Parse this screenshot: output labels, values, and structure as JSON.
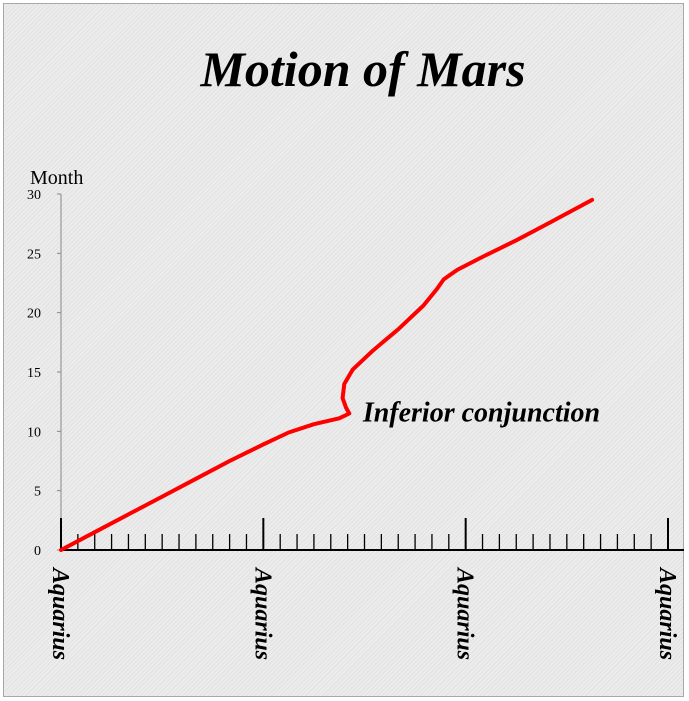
{
  "chart_data": {
    "type": "line",
    "title": "Motion of Mars",
    "ylabel": "Month",
    "xlabel": "",
    "ylim": [
      0,
      30
    ],
    "yticks": [
      0,
      5,
      10,
      15,
      20,
      25,
      30
    ],
    "xlim": [
      0,
      36
    ],
    "x_tick_labels": [
      {
        "x": 0,
        "label": "Aquarius"
      },
      {
        "x": 12,
        "label": "Aquarius"
      },
      {
        "x": 24,
        "label": "Aquarius"
      },
      {
        "x": 36,
        "label": "Aquarius"
      }
    ],
    "x_minor_ticks_per_major": 12,
    "grid": false,
    "series": [
      {
        "color": "#ff0000",
        "points": [
          [
            0,
            0
          ],
          [
            2,
            1.5
          ],
          [
            4,
            3
          ],
          [
            6,
            4.5
          ],
          [
            8,
            6
          ],
          [
            10,
            7.5
          ],
          [
            12,
            8.9
          ],
          [
            13.5,
            9.9
          ],
          [
            15,
            10.6
          ],
          [
            16.5,
            11.1
          ],
          [
            17.1,
            11.5
          ],
          [
            16.9,
            12
          ],
          [
            16.7,
            12.8
          ],
          [
            16.8,
            14
          ],
          [
            17.3,
            15.2
          ],
          [
            18.5,
            16.8
          ],
          [
            20,
            18.6
          ],
          [
            21.5,
            20.6
          ],
          [
            22.3,
            22
          ],
          [
            22.7,
            22.8
          ],
          [
            23.5,
            23.6
          ],
          [
            25,
            24.7
          ],
          [
            27,
            26.1
          ],
          [
            29,
            27.6
          ],
          [
            31.5,
            29.5
          ]
        ]
      }
    ],
    "annotations": [
      {
        "text": "Inferior conjunction",
        "x": 17.9,
        "y": 11.6
      }
    ]
  }
}
